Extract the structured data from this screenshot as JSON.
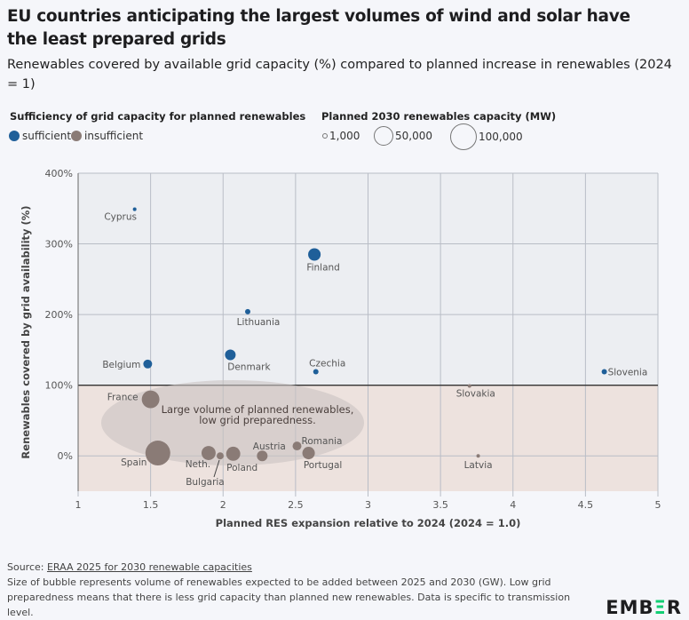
{
  "title": "EU countries anticipating the largest volumes of wind and solar have the least prepared grids",
  "subtitle": "Renewables covered by available grid capacity (%) compared to planned increase in renewables (2024 = 1)",
  "legend": {
    "color_title": "Sufficiency of grid capacity for planned renewables",
    "color_items": [
      {
        "label": "sufficient",
        "color": "#1f5f99"
      },
      {
        "label": "insufficient",
        "color": "#8a7b76"
      }
    ],
    "size_title": "Planned 2030 renewables capacity (MW)",
    "size_items": [
      "1,000",
      "50,000",
      "100,000"
    ]
  },
  "chart_data": {
    "type": "scatter",
    "xlabel": "Planned RES expansion relative to 2024 (2024 = 1.0)",
    "ylabel": "Renewables covered by grid availability (%)",
    "xlim": [
      1,
      5
    ],
    "ylim": [
      -50,
      400
    ],
    "x_ticks": [
      "1",
      "1.5",
      "2",
      "2.5",
      "3",
      "3.5",
      "4",
      "4.5",
      "5"
    ],
    "y_ticks": [
      "0%",
      "100%",
      "200%",
      "300%",
      "400%"
    ],
    "grid": true,
    "threshold_y": 100,
    "annotation": "Large volume of planned renewables, low grid preparedness.",
    "points": [
      {
        "name": "Cyprus",
        "x": 1.39,
        "y": 349,
        "capacity_mw": 1800,
        "status": "sufficient"
      },
      {
        "name": "Finland",
        "x": 2.63,
        "y": 285,
        "capacity_mw": 22000,
        "status": "sufficient"
      },
      {
        "name": "Lithuania",
        "x": 2.17,
        "y": 204,
        "capacity_mw": 4000,
        "status": "sufficient"
      },
      {
        "name": "Belgium",
        "x": 1.48,
        "y": 130,
        "capacity_mw": 11000,
        "status": "sufficient"
      },
      {
        "name": "Denmark",
        "x": 2.05,
        "y": 143,
        "capacity_mw": 16000,
        "status": "sufficient"
      },
      {
        "name": "Czechia",
        "x": 2.64,
        "y": 119,
        "capacity_mw": 4000,
        "status": "sufficient"
      },
      {
        "name": "Slovenia",
        "x": 4.63,
        "y": 119,
        "capacity_mw": 4000,
        "status": "sufficient"
      },
      {
        "name": "Slovakia",
        "x": 3.7,
        "y": 99,
        "capacity_mw": 1800,
        "status": "insufficient"
      },
      {
        "name": "France",
        "x": 1.5,
        "y": 80,
        "capacity_mw": 44000,
        "status": "insufficient"
      },
      {
        "name": "Spain",
        "x": 1.55,
        "y": 4,
        "capacity_mw": 87000,
        "status": "insufficient"
      },
      {
        "name": "Neth.",
        "x": 1.9,
        "y": 4,
        "capacity_mw": 28000,
        "status": "insufficient"
      },
      {
        "name": "Bulgaria",
        "x": 1.98,
        "y": 0,
        "capacity_mw": 7000,
        "status": "insufficient"
      },
      {
        "name": "Poland",
        "x": 2.07,
        "y": 3,
        "capacity_mw": 28000,
        "status": "insufficient"
      },
      {
        "name": "Austria",
        "x": 2.27,
        "y": 0,
        "capacity_mw": 16000,
        "status": "insufficient"
      },
      {
        "name": "Romania",
        "x": 2.51,
        "y": 14,
        "capacity_mw": 11000,
        "status": "insufficient"
      },
      {
        "name": "Portugal",
        "x": 2.59,
        "y": 4,
        "capacity_mw": 22000,
        "status": "insufficient"
      },
      {
        "name": "Latvia",
        "x": 3.76,
        "y": 0,
        "capacity_mw": 1800,
        "status": "insufficient"
      }
    ]
  },
  "footer": {
    "source_prefix": "Source: ",
    "source_link": "ERAA 2025 for 2030 renewable capacities",
    "note": "Size of bubble represents volume of renewables expected to be added between 2025 and 2030 (GW). Low grid preparedness means that there is less grid capacity than planned new renewables. Data is specific to transmission level.",
    "logo": "EMBER"
  }
}
